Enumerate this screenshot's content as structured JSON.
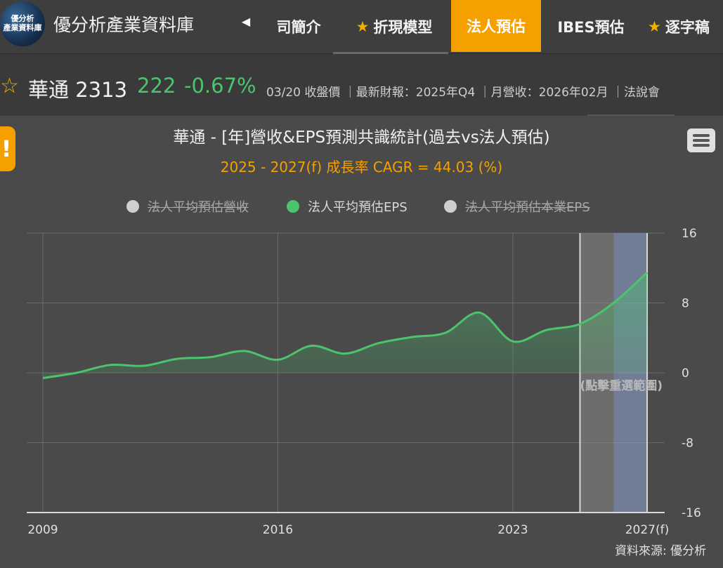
{
  "header": {
    "logo_text": "優分析\n產業資料庫",
    "brand": "優分析產業資料庫",
    "prev_arrow": "◀",
    "tabs": [
      {
        "label": "司簡介",
        "star": false,
        "active": false
      },
      {
        "label": "折現模型",
        "star": true,
        "active": false
      },
      {
        "label": "法人預估",
        "star": false,
        "active": true
      },
      {
        "label": "IBES預估",
        "star": false,
        "active": false
      },
      {
        "label": "逐字稿",
        "star": true,
        "active": false
      }
    ]
  },
  "stock": {
    "name_code": "華通 2313",
    "price": "222",
    "change": "-0.67%",
    "meta": "03/20 收盤價 ｜最新財報：2025年Q4 ｜月營收：2026年02月 ｜法說會"
  },
  "colors": {
    "accent": "#f6a000",
    "eps_green": "#4cc36d",
    "star_gold": "#f0b000"
  },
  "chart_data": {
    "type": "area",
    "title": "華通 - [年]營收&EPS預測共識統計(過去vs法人預估)",
    "subtitle": "2025 - 2027(f) 成長率 CAGR = 44.03 (%)",
    "legend": [
      {
        "label": "法人平均預估營收",
        "visible": false
      },
      {
        "label": "法人平均預估EPS",
        "visible": true
      },
      {
        "label": "法人平均預估本業EPS",
        "visible": false
      }
    ],
    "x_ticks": [
      "2009",
      "2016",
      "2023",
      "2027(f)"
    ],
    "y_ticks": [
      "16",
      "8",
      "0",
      "-8",
      "-16"
    ],
    "ylim": [
      -16,
      16
    ],
    "xlim": [
      2009,
      2027
    ],
    "series": [
      {
        "name": "法人平均預估EPS",
        "x": [
          2009,
          2010,
          2011,
          2012,
          2013,
          2014,
          2015,
          2016,
          2017,
          2018,
          2019,
          2020,
          2021,
          2022,
          2023,
          2024,
          2025,
          2026,
          2027
        ],
        "values": [
          -0.6,
          0.0,
          0.9,
          0.8,
          1.6,
          1.8,
          2.5,
          1.5,
          3.1,
          2.2,
          3.4,
          4.1,
          4.6,
          6.9,
          3.6,
          4.9,
          5.6,
          8.0,
          11.5
        ]
      }
    ],
    "forecast_region": {
      "x_start": 2025,
      "x_end": 2027,
      "highlight_start": 2026
    },
    "reset_hint": "(點擊重選範圍)",
    "grid": true
  },
  "footer": {
    "source": "資料來源: 優分析"
  }
}
